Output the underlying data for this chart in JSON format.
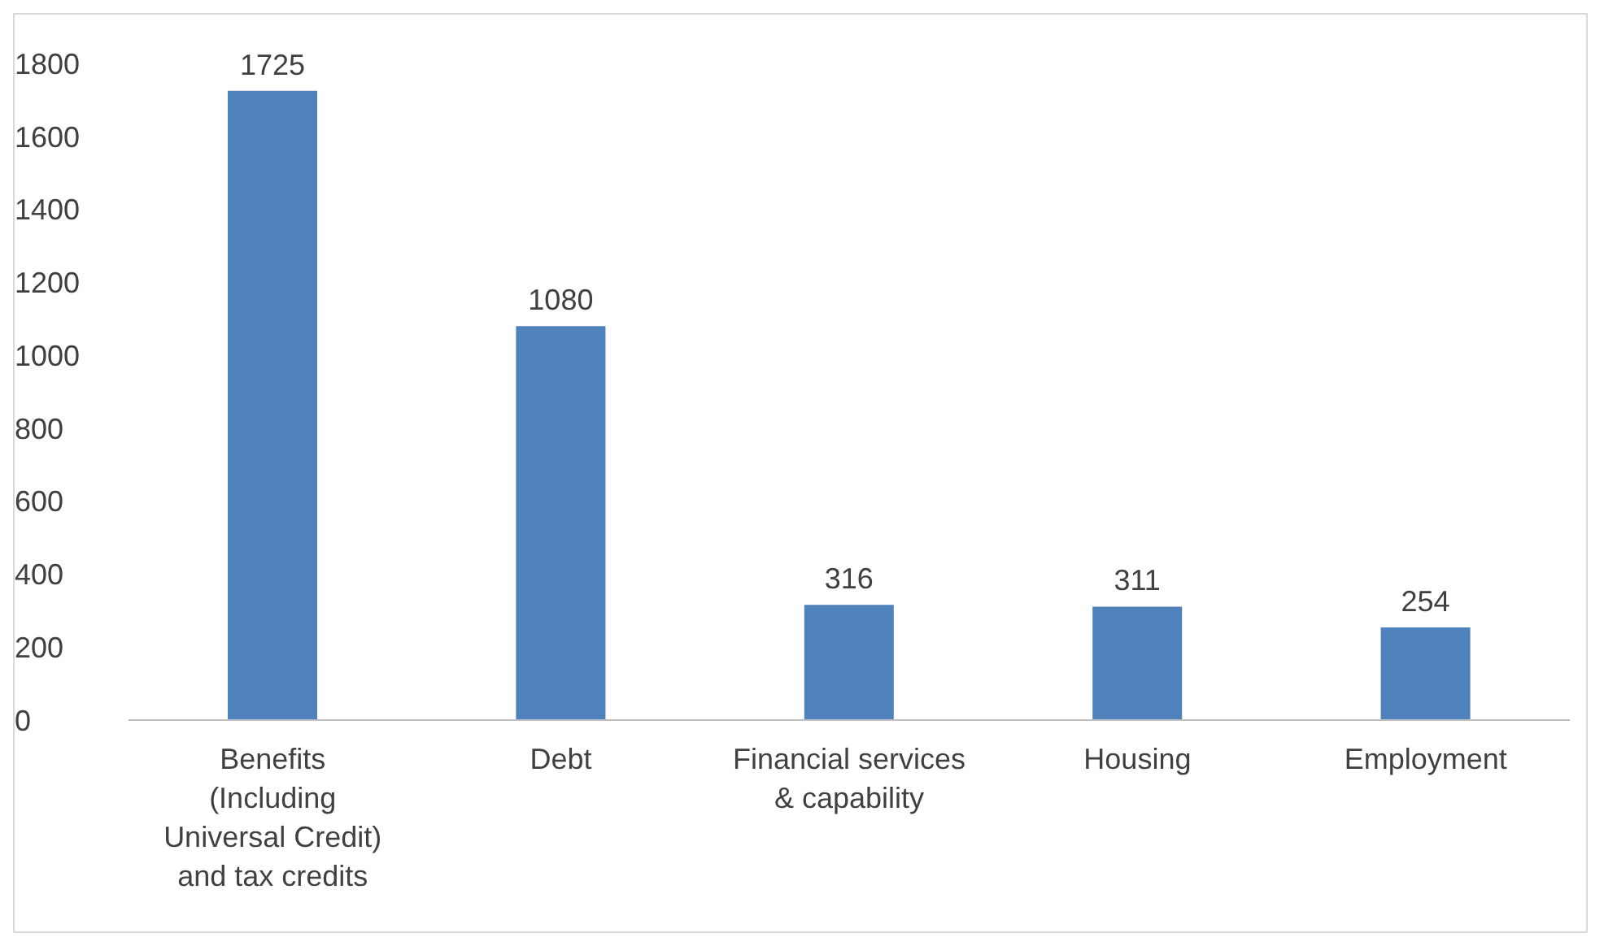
{
  "chart_data": {
    "type": "bar",
    "categories": [
      "Benefits (Including Universal Credit) and tax credits",
      "Debt",
      "Financial services & capability",
      "Housing",
      "Employment"
    ],
    "values": [
      1725,
      1080,
      316,
      311,
      254
    ],
    "color": "#4f81bd",
    "ylim": [
      0,
      1800
    ],
    "yticks": [
      0,
      200,
      400,
      600,
      800,
      1000,
      1200,
      1400,
      1600,
      1800
    ],
    "grid": false,
    "data_labels": true,
    "legend": false
  }
}
